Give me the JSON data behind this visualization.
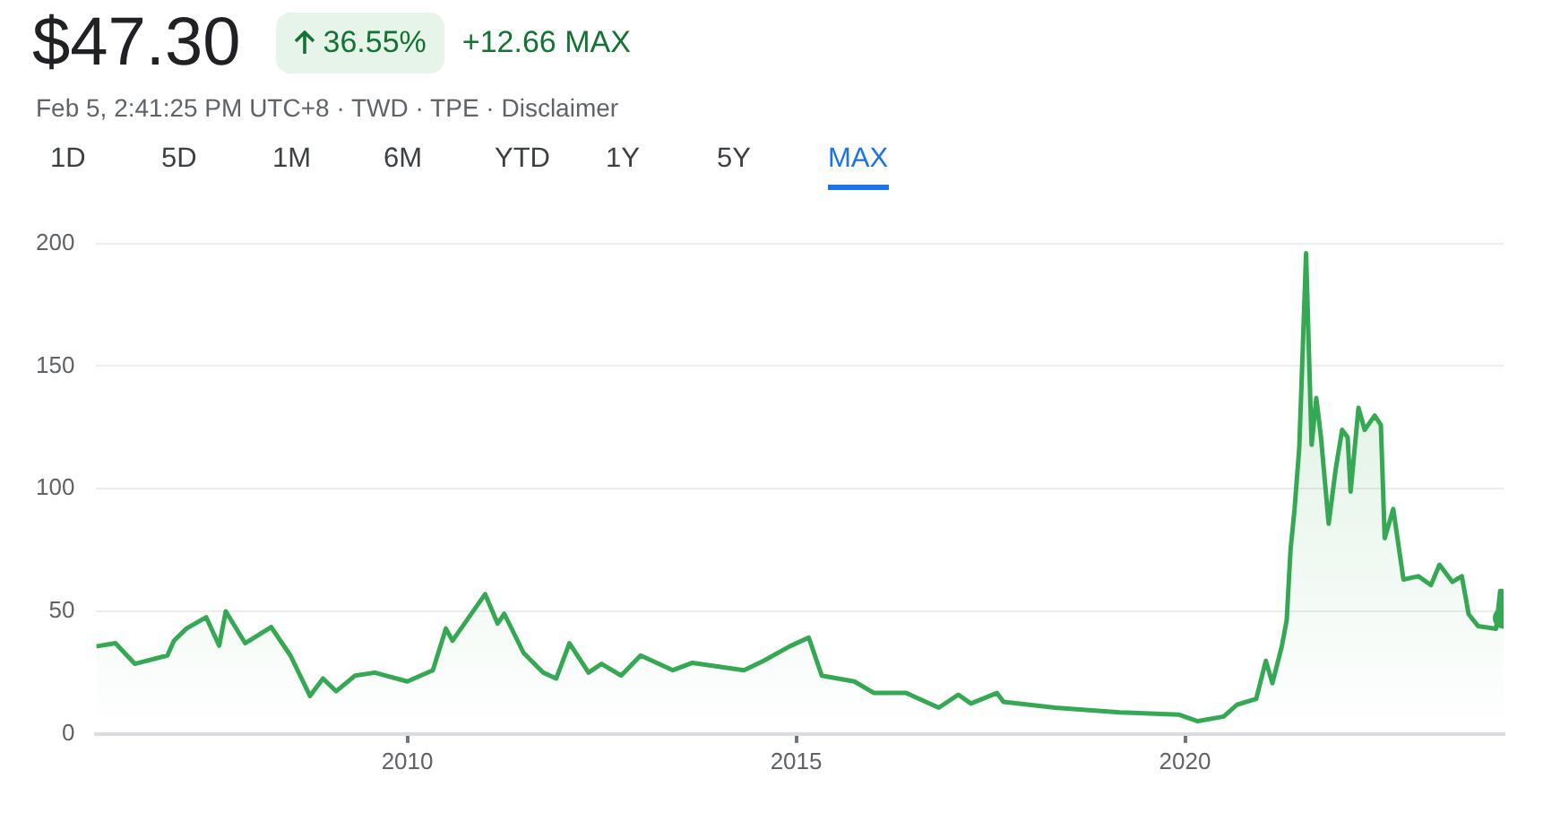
{
  "chart_data": {
    "type": "area",
    "title": "$47.30",
    "subtitle": "Feb 5, 2:41:25 PM UTC+8 · TWD · TPE · Disclaimer",
    "annotations": [
      "36.55%",
      "+12.66 MAX",
      "1D",
      "5D",
      "1M",
      "6M",
      "YTD",
      "1Y",
      "5Y",
      "MAX"
    ],
    "x": [
      "2006-01",
      "2006-04",
      "2006-07",
      "2006-12",
      "2007-01",
      "2007-03",
      "2007-06",
      "2007-08",
      "2007-09",
      "2007-12",
      "2008-04",
      "2008-07",
      "2008-10",
      "2008-12",
      "2009-02",
      "2009-05",
      "2009-08",
      "2010-01",
      "2010-05",
      "2010-07",
      "2010-08",
      "2011-01",
      "2011-03",
      "2011-04",
      "2011-07",
      "2011-10",
      "2011-12",
      "2012-02",
      "2012-05",
      "2012-07",
      "2012-10",
      "2013-01",
      "2013-06",
      "2013-09",
      "2014-05",
      "2014-08",
      "2014-12",
      "2015-03",
      "2015-05",
      "2015-10",
      "2016-01",
      "2016-06",
      "2016-11",
      "2017-02",
      "2017-04",
      "2017-08",
      "2017-09",
      "2018-05",
      "2019-03",
      "2019-12",
      "2020-03",
      "2020-07",
      "2020-09",
      "2020-12",
      "2021-01-15",
      "2021-02-15",
      "2021-03-31",
      "2021-04-23",
      "2021-05-11",
      "2021-05-30",
      "2021-06-21",
      "2021-07-05",
      "2021-07-23",
      "2021-08-18",
      "2021-09-09",
      "2021-10-01",
      "2021-11-06",
      "2021-12-09",
      "2022-01-08",
      "2022-02-03",
      "2022-02-17",
      "2022-03-26",
      "2022-04-24",
      "2022-06-10",
      "2022-07-09",
      "2022-07-27",
      "2022-09-05",
      "2022-10-23",
      "2023-01-01",
      "2023-03-01",
      "2023-04-10",
      "2023-06-10",
      "2023-07-24",
      "2023-08-25",
      "2023-10-08",
      "2024-01-01",
      "2024-01-20",
      "2024-01-27",
      "2024-02-05"
    ],
    "series": [
      {
        "color": "#34a853",
        "values": [
          35.7,
          37,
          28.6,
          32,
          38,
          43,
          47.6,
          36,
          50,
          37,
          43.6,
          32,
          15.5,
          22.6,
          17.4,
          23.8,
          25,
          21.4,
          26,
          43,
          38,
          57,
          45,
          49,
          33,
          25,
          22.6,
          37,
          25,
          28.6,
          23.8,
          32,
          26,
          29,
          26,
          29.8,
          35.7,
          39.3,
          23.8,
          21.4,
          16.7,
          16.7,
          10.7,
          16,
          12.4,
          16.7,
          13.1,
          10.7,
          8.8,
          7.9,
          5.2,
          7.1,
          11.9,
          14.3,
          29.8,
          20.7,
          35.7,
          46.4,
          75,
          91.7,
          116.7,
          151,
          196,
          117.9,
          137,
          121,
          85.7,
          108,
          124,
          121,
          98.8,
          133,
          124,
          129.8,
          126,
          79.8,
          91.7,
          63,
          64.3,
          60.7,
          69,
          62,
          64.3,
          48.8,
          44,
          42.9,
          58.3,
          48.8,
          47.3
        ]
      }
    ],
    "xlim": [
      "2006-01",
      "2024-02-05"
    ],
    "xticks": [
      "2010",
      "2015",
      "2020"
    ],
    "ylim": [
      0,
      200
    ],
    "yticks": [
      0,
      50,
      100,
      150,
      200
    ],
    "grid": "y",
    "legend": false
  }
}
